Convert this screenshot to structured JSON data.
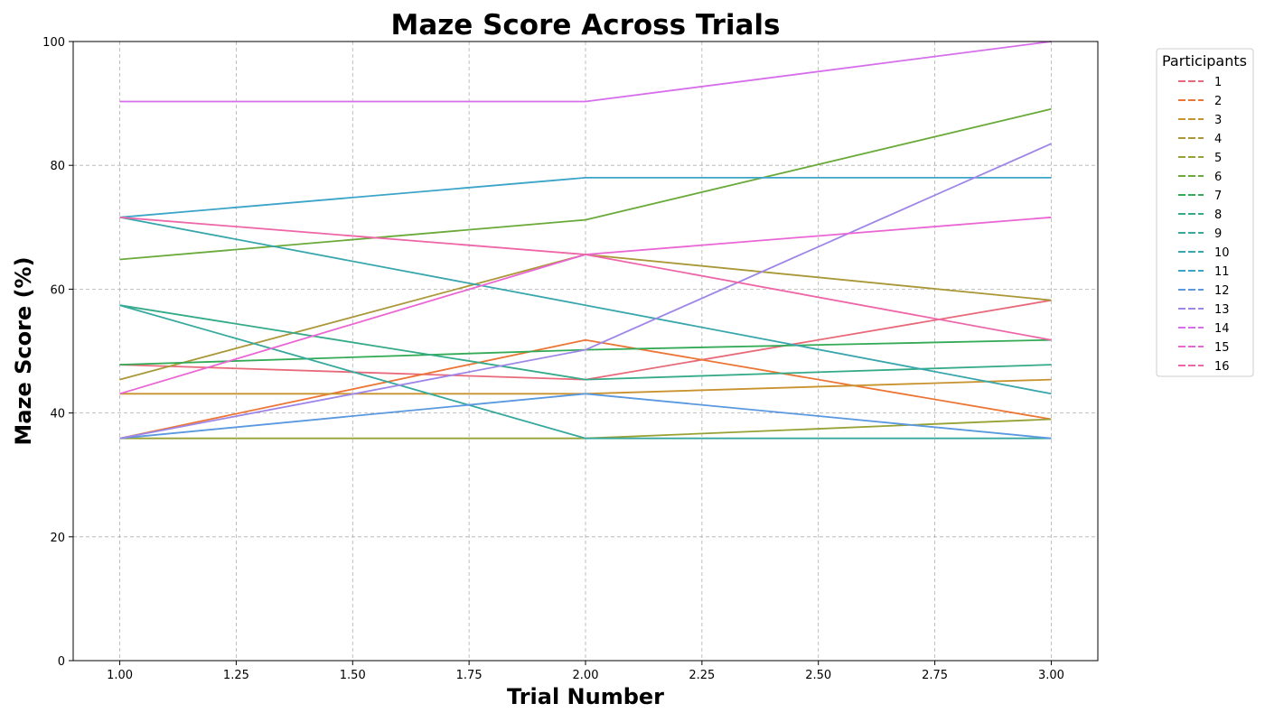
{
  "chart_data": {
    "type": "line",
    "title": "Maze Score Across Trials",
    "xlabel": "Trial Number",
    "ylabel": "Maze Score (%)",
    "xlim": [
      0.9,
      3.1
    ],
    "ylim": [
      0,
      100
    ],
    "xticks": [
      "1.00",
      "1.25",
      "1.50",
      "1.75",
      "2.00",
      "2.25",
      "2.50",
      "2.75",
      "3.00"
    ],
    "xtick_values": [
      1.0,
      1.25,
      1.5,
      1.75,
      2.0,
      2.25,
      2.5,
      2.75,
      3.0
    ],
    "yticks": [
      "0",
      "20",
      "40",
      "60",
      "80",
      "100"
    ],
    "ytick_values": [
      0,
      20,
      40,
      60,
      80,
      100
    ],
    "grid": true,
    "legend": {
      "title": "Participants",
      "placement": "outside-top-right"
    },
    "x": [
      1,
      2,
      3
    ],
    "series": [
      {
        "name": "1",
        "color": "#e8697a",
        "values": [
          47.8,
          45.4,
          58.2
        ]
      },
      {
        "name": "2",
        "color": "#ec7536",
        "values": [
          35.9,
          51.8,
          39.0
        ]
      },
      {
        "name": "3",
        "color": "#c8922e",
        "values": [
          43.1,
          43.1,
          45.4
        ]
      },
      {
        "name": "4",
        "color": "#aa9838",
        "values": [
          45.4,
          65.6,
          58.2
        ]
      },
      {
        "name": "5",
        "color": "#98a134",
        "values": [
          35.9,
          35.9,
          39.0
        ]
      },
      {
        "name": "6",
        "color": "#6aaa3a",
        "values": [
          64.8,
          71.2,
          89.1
        ]
      },
      {
        "name": "7",
        "color": "#33aa55",
        "values": [
          47.8,
          50.2,
          51.8
        ]
      },
      {
        "name": "8",
        "color": "#34aa88",
        "values": [
          57.4,
          45.4,
          47.8
        ]
      },
      {
        "name": "9",
        "color": "#36a89e",
        "values": [
          57.4,
          35.9,
          35.9
        ]
      },
      {
        "name": "10",
        "color": "#38a6ad",
        "values": [
          71.6,
          57.4,
          43.1
        ]
      },
      {
        "name": "11",
        "color": "#3ca4c9",
        "values": [
          71.6,
          78.0,
          78.0
        ]
      },
      {
        "name": "12",
        "color": "#5a98e0",
        "values": [
          35.9,
          43.1,
          35.9
        ]
      },
      {
        "name": "13",
        "color": "#9e86e8",
        "values": [
          35.9,
          50.2,
          83.5
        ]
      },
      {
        "name": "14",
        "color": "#d66eec",
        "values": [
          90.3,
          90.3,
          100.0
        ]
      },
      {
        "name": "15",
        "color": "#ea66d4",
        "values": [
          43.1,
          65.6,
          71.6
        ]
      },
      {
        "name": "16",
        "color": "#ee66a8",
        "values": [
          71.6,
          65.6,
          51.8
        ]
      }
    ]
  }
}
